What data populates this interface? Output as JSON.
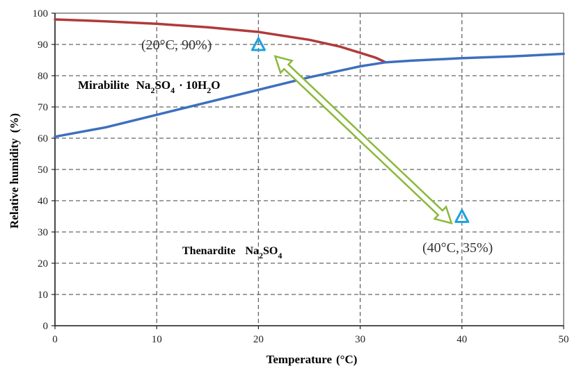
{
  "chart_data": {
    "type": "line",
    "xlabel": "Temperature",
    "xlabel_unit": "(°C)",
    "ylabel": "Relative humidity",
    "ylabel_unit": "(%)",
    "xlim": [
      0,
      50
    ],
    "ylim": [
      0,
      100
    ],
    "xticks": [
      0,
      10,
      20,
      30,
      40,
      50
    ],
    "yticks": [
      0,
      10,
      20,
      30,
      40,
      50,
      60,
      70,
      80,
      90,
      100
    ],
    "grid": true,
    "series": [
      {
        "color": "#b03a3a",
        "x": [
          0,
          5,
          10,
          15,
          20,
          25,
          28,
          30,
          31.5,
          32.5
        ],
        "y": [
          98,
          97.4,
          96.6,
          95.5,
          94,
          91.5,
          89.3,
          87.3,
          85.8,
          84.3
        ]
      },
      {
        "color": "#3d6fbf",
        "x": [
          0,
          5,
          10,
          15,
          20,
          25,
          30,
          32.5,
          35,
          40,
          45,
          50
        ],
        "y": [
          60.5,
          63.5,
          67.5,
          71.5,
          75.5,
          79.5,
          83,
          84.3,
          84.8,
          85.6,
          86.2,
          87
        ]
      }
    ],
    "annotations": {
      "point_a": {
        "label": "(20°C, 90%)",
        "x": 20,
        "y": 90
      },
      "point_b": {
        "label": "(40°C, 35%)",
        "x": 40,
        "y": 35
      },
      "mirabilite": {
        "name": "Mirabilite",
        "f1": "Na",
        "s1": "2",
        "f2": "SO",
        "s2": "4",
        "f3": "· 10H",
        "s3": "2",
        "f4": "O"
      },
      "thenardite": {
        "name": "Thenardite",
        "f1": "Na",
        "s1": "2",
        "f2": "SO",
        "s2": "4"
      }
    },
    "colors": {
      "marker": "#1aa3e0",
      "arrow": "#8ab83a",
      "grid": "#666666"
    }
  }
}
